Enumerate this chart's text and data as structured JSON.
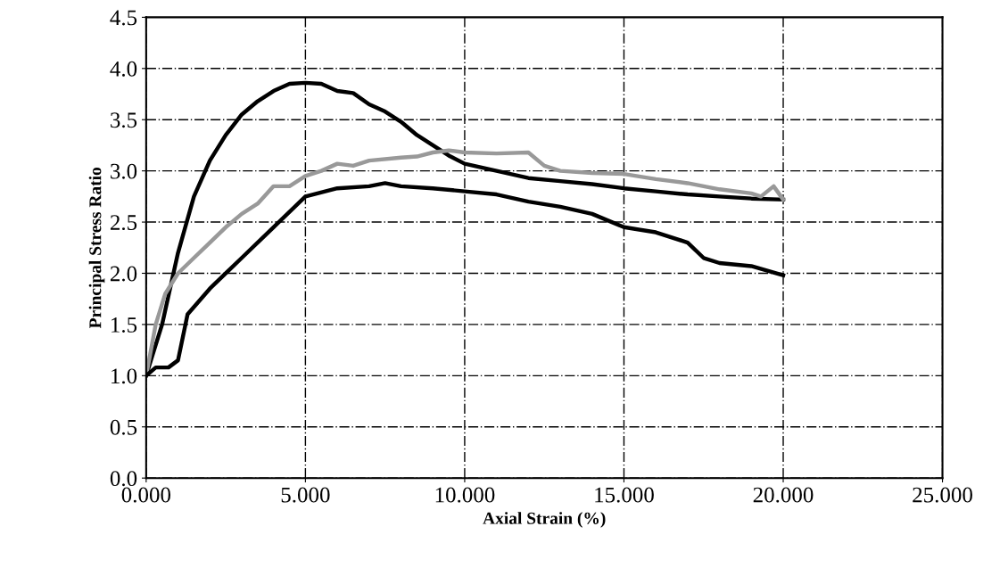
{
  "chart_data": {
    "type": "line",
    "xlabel": "Axial Strain (%)",
    "ylabel": "Principal Stress Ratio",
    "xlim": [
      0,
      25
    ],
    "xticks": [
      {
        "value": 0,
        "label": "0.000"
      },
      {
        "value": 5,
        "label": "5.000"
      },
      {
        "value": 10,
        "label": "10.000"
      },
      {
        "value": 15,
        "label": "15.000"
      },
      {
        "value": 20,
        "label": "20.000"
      },
      {
        "value": 25,
        "label": "25.000"
      }
    ],
    "ylim": [
      0,
      4.5
    ],
    "yticks": [
      {
        "value": 0,
        "label": "0.0"
      },
      {
        "value": 0.5,
        "label": "0.5"
      },
      {
        "value": 1,
        "label": "1.0"
      },
      {
        "value": 1.5,
        "label": "1.5"
      },
      {
        "value": 2,
        "label": "2.0"
      },
      {
        "value": 2.5,
        "label": "2.5"
      },
      {
        "value": 3,
        "label": "3.0"
      },
      {
        "value": 3.5,
        "label": "3.5"
      },
      {
        "value": 4,
        "label": "4.0"
      },
      {
        "value": 4.5,
        "label": "4.5"
      }
    ],
    "grid": true,
    "marker": "none",
    "line_style": "solid",
    "series": [
      {
        "color": "#000000",
        "x": [
          0,
          0.5,
          1,
          1.5,
          2,
          2.5,
          3,
          3.5,
          4,
          4.5,
          5,
          5.5,
          6,
          6.5,
          7,
          7.5,
          8,
          8.5,
          9,
          9.5,
          10,
          11,
          12,
          13,
          14,
          15,
          16,
          17,
          18,
          19,
          20
        ],
        "values": [
          1.0,
          1.5,
          2.2,
          2.75,
          3.1,
          3.35,
          3.55,
          3.68,
          3.78,
          3.85,
          3.86,
          3.85,
          3.78,
          3.76,
          3.65,
          3.58,
          3.48,
          3.35,
          3.25,
          3.15,
          3.07,
          3.0,
          2.93,
          2.9,
          2.87,
          2.83,
          2.8,
          2.77,
          2.75,
          2.73,
          2.72
        ]
      },
      {
        "color": "#999999",
        "x": [
          0,
          0.3,
          0.6,
          1,
          1.5,
          2,
          2.5,
          3,
          3.5,
          4,
          4.5,
          5,
          5.5,
          6,
          6.5,
          7,
          8,
          8.5,
          9,
          9.5,
          10,
          11,
          12,
          12.5,
          13,
          14,
          15,
          16,
          17,
          18,
          19,
          19.3,
          19.7,
          20
        ],
        "values": [
          1.0,
          1.5,
          1.8,
          2.0,
          2.15,
          2.3,
          2.45,
          2.58,
          2.68,
          2.85,
          2.85,
          2.95,
          3.0,
          3.07,
          3.05,
          3.1,
          3.13,
          3.14,
          3.18,
          3.2,
          3.18,
          3.17,
          3.18,
          3.05,
          3.0,
          2.98,
          2.97,
          2.92,
          2.88,
          2.82,
          2.78,
          2.75,
          2.85,
          2.72
        ]
      },
      {
        "color": "#000000",
        "x": [
          0,
          0.3,
          0.7,
          1,
          1.3,
          2,
          3,
          4,
          5,
          6,
          7,
          7.5,
          8,
          9,
          10,
          11,
          12,
          13,
          14,
          15,
          16,
          17,
          17.5,
          18,
          19,
          20
        ],
        "values": [
          1.0,
          1.08,
          1.08,
          1.15,
          1.6,
          1.85,
          2.15,
          2.45,
          2.75,
          2.83,
          2.85,
          2.88,
          2.85,
          2.83,
          2.8,
          2.77,
          2.7,
          2.65,
          2.58,
          2.45,
          2.4,
          2.3,
          2.15,
          2.1,
          2.07,
          1.98
        ]
      }
    ]
  }
}
